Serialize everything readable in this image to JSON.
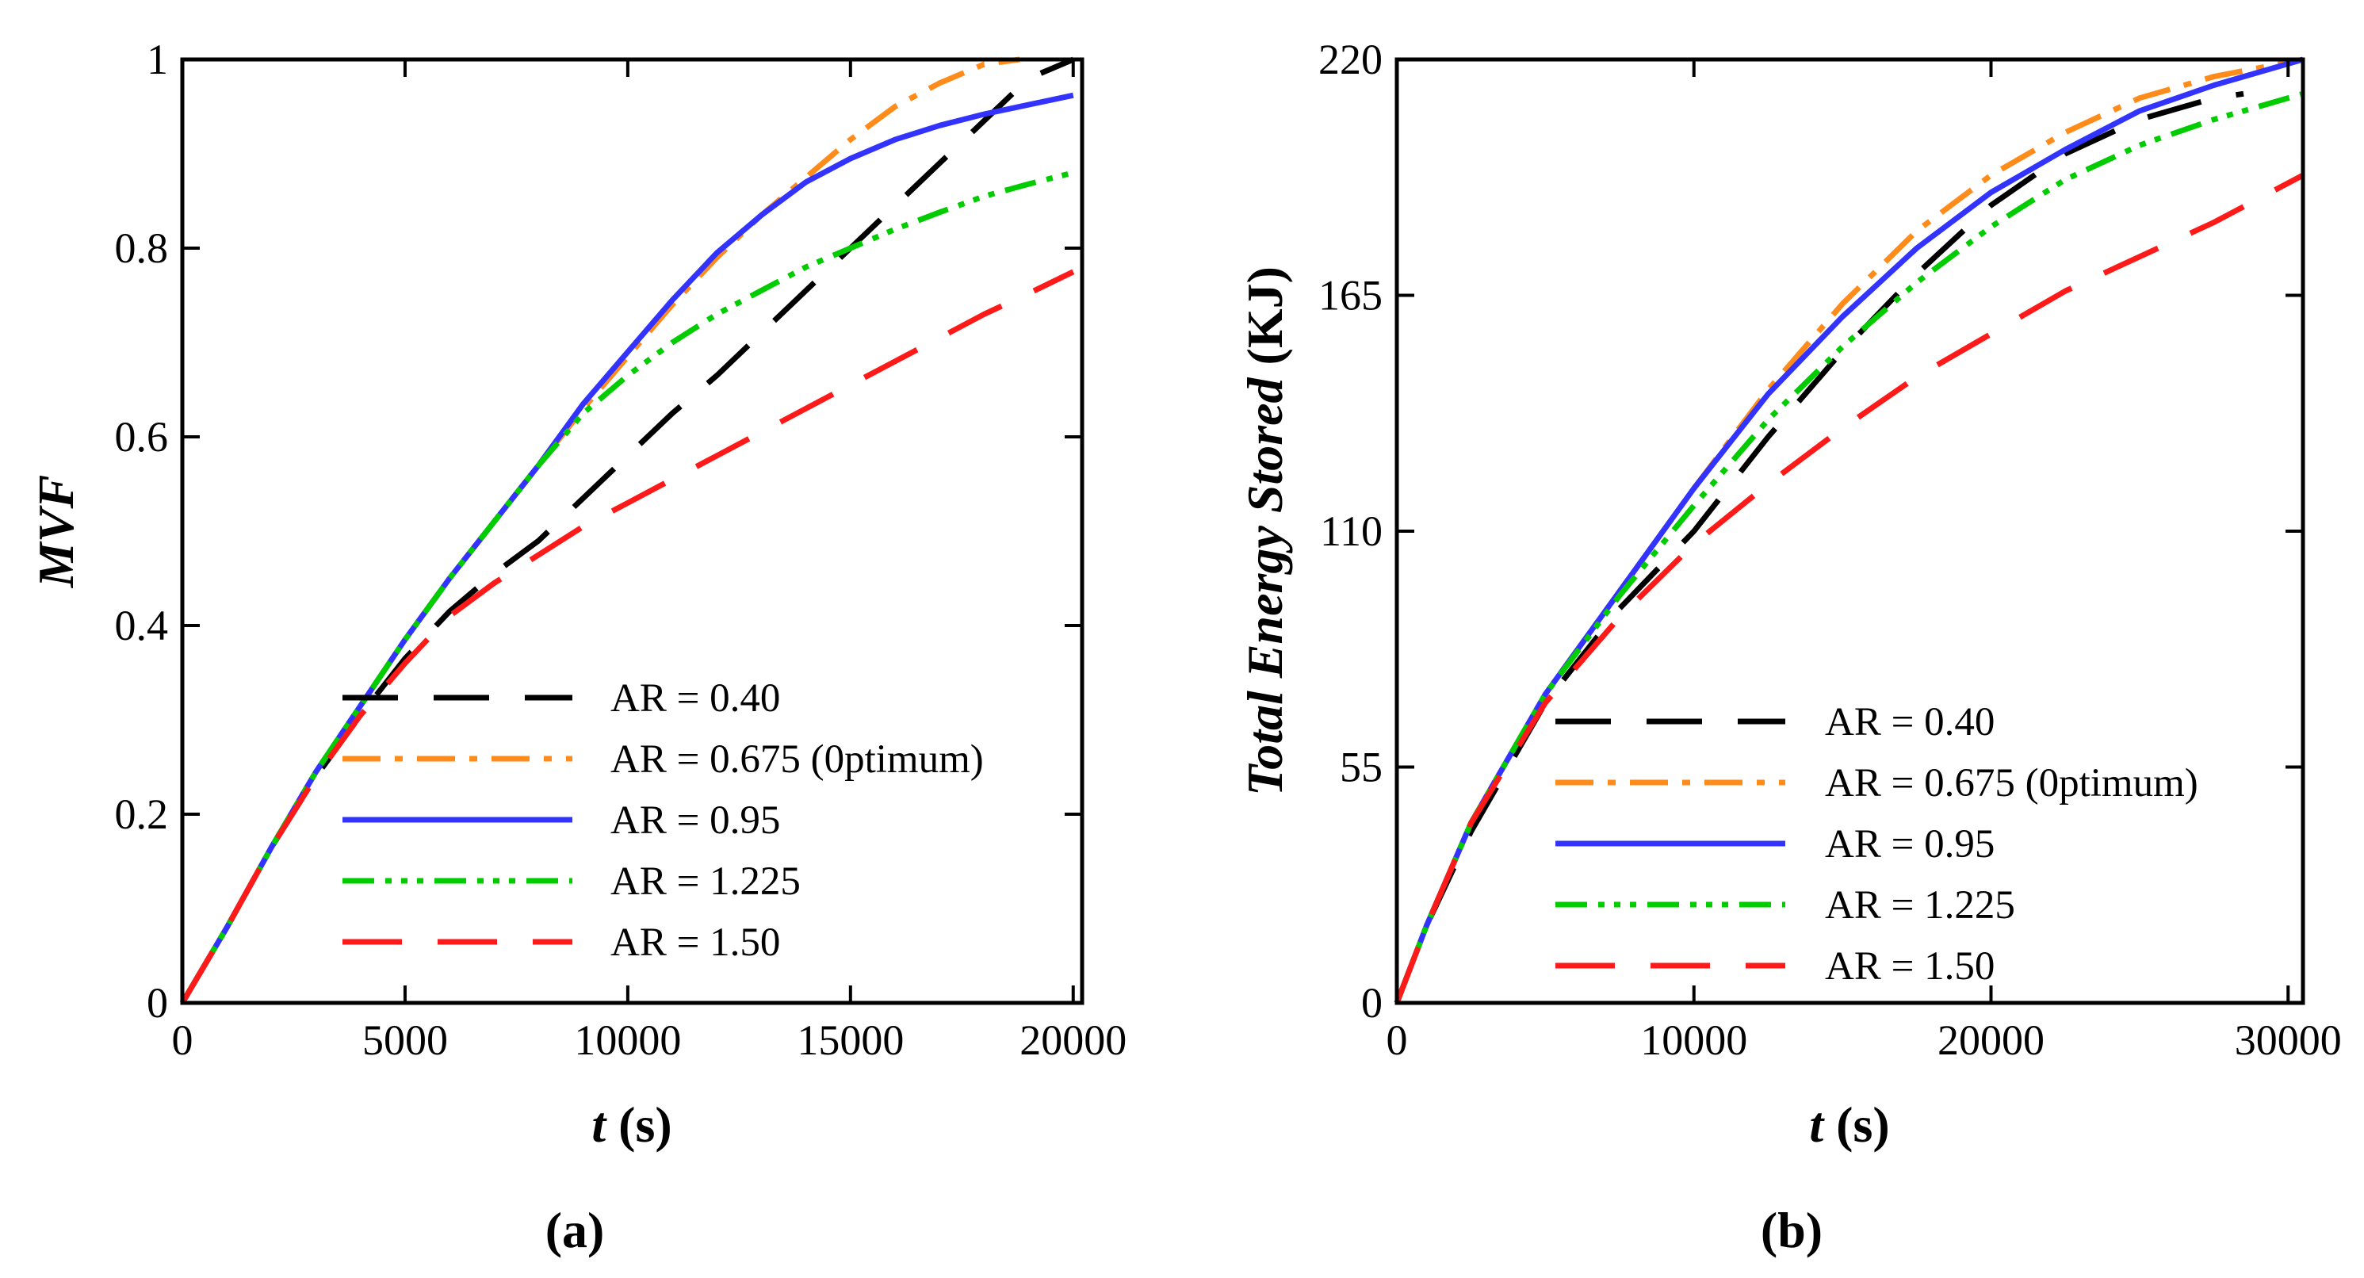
{
  "figure": {
    "series_styles": [
      {
        "name": "AR = 0.40",
        "color": "#000000",
        "dash": "70,45"
      },
      {
        "name": "AR = 0.675 (0ptimum)",
        "color": "#ff8c1a",
        "dash": "48,18,10,18"
      },
      {
        "name": "AR = 0.95",
        "color": "#3333ff",
        "dash": ""
      },
      {
        "name": "AR = 1.225",
        "color": "#00cc00",
        "dash": "40,14,8,12,8,12,8,14"
      },
      {
        "name": "AR = 1.50",
        "color": "#ff1a1a",
        "dash": "75,45"
      }
    ]
  },
  "chart_data": [
    {
      "type": "line",
      "panel_label": "(a)",
      "title": "",
      "xlabel_italic": "t",
      "xlabel_rest": " (s)",
      "ylabel": "MVF",
      "xlim": [
        0,
        20200
      ],
      "ylim": [
        0,
        1
      ],
      "xticks": [
        0,
        5000,
        10000,
        15000,
        20000
      ],
      "xtick_labels": [
        "0",
        "5000",
        "10000",
        "15000",
        "20000"
      ],
      "yticks": [
        0,
        0.2,
        0.4,
        0.6,
        0.8,
        1
      ],
      "ytick_labels": [
        "0",
        "0.2",
        "0.4",
        "0.6",
        "0.8",
        "1"
      ],
      "legend_position": "lower-right",
      "series": [
        {
          "name": "AR = 0.40",
          "x": [
            0,
            1000,
            2000,
            3000,
            4000,
            5000,
            6000,
            7000,
            8000,
            9000,
            10000,
            11000,
            12000,
            13000,
            14000,
            15000,
            16000,
            17000,
            18000,
            19000,
            20000
          ],
          "y": [
            0,
            0.08,
            0.165,
            0.24,
            0.305,
            0.365,
            0.415,
            0.455,
            0.49,
            0.535,
            0.58,
            0.625,
            0.665,
            0.71,
            0.755,
            0.8,
            0.845,
            0.89,
            0.935,
            0.98,
            1.0
          ]
        },
        {
          "name": "AR = 0.675 (0ptimum)",
          "x": [
            0,
            1000,
            2000,
            3000,
            4000,
            5000,
            6000,
            7000,
            8000,
            9000,
            10000,
            11000,
            12000,
            13000,
            14000,
            15000,
            16000,
            17000,
            18000,
            18800
          ],
          "y": [
            0,
            0.08,
            0.165,
            0.245,
            0.315,
            0.385,
            0.45,
            0.51,
            0.57,
            0.63,
            0.685,
            0.74,
            0.79,
            0.835,
            0.875,
            0.915,
            0.95,
            0.975,
            0.995,
            1.0
          ]
        },
        {
          "name": "AR = 0.95",
          "x": [
            0,
            1000,
            2000,
            3000,
            4000,
            5000,
            6000,
            7000,
            8000,
            9000,
            10000,
            11000,
            12000,
            13000,
            14000,
            15000,
            16000,
            17000,
            18000,
            19000,
            20000
          ],
          "y": [
            0,
            0.08,
            0.165,
            0.245,
            0.315,
            0.385,
            0.45,
            0.51,
            0.57,
            0.635,
            0.69,
            0.745,
            0.795,
            0.835,
            0.87,
            0.895,
            0.915,
            0.93,
            0.942,
            0.952,
            0.962
          ]
        },
        {
          "name": "AR = 1.225",
          "x": [
            0,
            1000,
            2000,
            3000,
            4000,
            5000,
            6000,
            7000,
            8000,
            9000,
            10000,
            11000,
            12000,
            13000,
            14000,
            15000,
            16000,
            17000,
            18000,
            19000,
            20000
          ],
          "y": [
            0,
            0.08,
            0.165,
            0.245,
            0.315,
            0.385,
            0.45,
            0.51,
            0.57,
            0.625,
            0.665,
            0.7,
            0.73,
            0.755,
            0.78,
            0.8,
            0.82,
            0.838,
            0.855,
            0.868,
            0.88
          ]
        },
        {
          "name": "AR = 1.50",
          "x": [
            0,
            1000,
            2000,
            3000,
            4000,
            5000,
            6000,
            7000,
            8000,
            9000,
            10000,
            11000,
            12000,
            13000,
            14000,
            15000,
            16000,
            17000,
            18000,
            19000,
            20000
          ],
          "y": [
            0,
            0.08,
            0.165,
            0.24,
            0.305,
            0.36,
            0.41,
            0.445,
            0.475,
            0.505,
            0.53,
            0.555,
            0.58,
            0.605,
            0.63,
            0.655,
            0.68,
            0.705,
            0.73,
            0.752,
            0.775
          ]
        }
      ]
    },
    {
      "type": "line",
      "panel_label": "(b)",
      "title": "",
      "xlabel_italic": "t",
      "xlabel_rest": " (s)",
      "ylabel_italic": "Total Energy Stored",
      "ylabel_rest": " (KJ)",
      "xlim": [
        0,
        30500
      ],
      "ylim": [
        0,
        220
      ],
      "xticks": [
        0,
        10000,
        20000,
        30000
      ],
      "xtick_labels": [
        "0",
        "10000",
        "20000",
        "30000"
      ],
      "yticks": [
        0,
        55,
        110,
        165,
        220
      ],
      "ytick_labels": [
        "0",
        "55",
        "110",
        "165",
        "220"
      ],
      "legend_position": "lower-right",
      "series": [
        {
          "name": "AR = 0.40",
          "x": [
            0,
            1000,
            2500,
            5000,
            7500,
            10000,
            12500,
            15000,
            17500,
            20000,
            22500,
            25000,
            27500,
            28500
          ],
          "y": [
            0,
            18,
            40,
            70,
            92,
            110,
            132,
            152,
            170,
            186,
            198,
            206,
            211,
            212
          ]
        },
        {
          "name": "AR = 0.675 (0ptimum)",
          "x": [
            0,
            1000,
            2500,
            5000,
            7500,
            10000,
            12500,
            15000,
            17500,
            20000,
            22500,
            25000,
            27500,
            30500
          ],
          "y": [
            0,
            18,
            42,
            72,
            96,
            120,
            143,
            163,
            180,
            193,
            203,
            211,
            216,
            220
          ]
        },
        {
          "name": "AR = 0.95",
          "x": [
            0,
            1000,
            2500,
            5000,
            7500,
            10000,
            12500,
            15000,
            17500,
            20000,
            22500,
            25000,
            27500,
            30500
          ],
          "y": [
            0,
            18,
            42,
            72,
            96,
            120,
            142,
            160,
            176,
            189,
            199,
            208,
            214,
            220
          ]
        },
        {
          "name": "AR = 1.225",
          "x": [
            0,
            1000,
            2500,
            5000,
            7500,
            10000,
            12500,
            15000,
            17500,
            20000,
            22500,
            25000,
            27500,
            30500
          ],
          "y": [
            0,
            18,
            42,
            72,
            95,
            116,
            136,
            153,
            168,
            181,
            192,
            200,
            206,
            212
          ]
        },
        {
          "name": "AR = 1.50",
          "x": [
            0,
            1000,
            2500,
            5000,
            7500,
            10000,
            12500,
            15000,
            17500,
            20000,
            22500,
            25000,
            27500,
            30500
          ],
          "y": [
            0,
            18,
            42,
            70,
            90,
            107,
            121,
            134,
            146,
            156,
            166,
            174,
            182,
            193
          ]
        }
      ]
    }
  ]
}
